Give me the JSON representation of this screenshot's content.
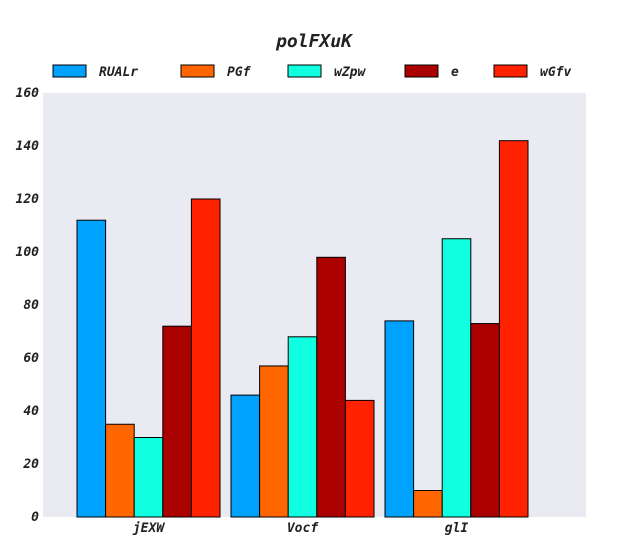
{
  "chart_data": {
    "type": "bar",
    "title": "polFXuK",
    "xlabel": "",
    "ylabel": "",
    "categories": [
      "jEXW",
      "Vocf",
      "glI"
    ],
    "series": [
      {
        "name": "RUALr",
        "color": "#00a2ff",
        "values": [
          112,
          46,
          74
        ]
      },
      {
        "name": "PGf",
        "color": "#ff6600",
        "values": [
          35,
          57,
          10
        ]
      },
      {
        "name": "wZpw",
        "color": "#10ffe0",
        "values": [
          30,
          68,
          105
        ]
      },
      {
        "name": "e",
        "color": "#aa0000",
        "values": [
          72,
          98,
          73
        ]
      },
      {
        "name": "wGfv",
        "color": "#ff2200",
        "values": [
          120,
          44,
          142
        ]
      }
    ],
    "ylim": [
      0,
      160
    ],
    "yticks": [
      0,
      20,
      40,
      60,
      80,
      100,
      120,
      140,
      160
    ],
    "grid": false,
    "legend_position": "top",
    "plot_background": "#eaeaf2"
  }
}
